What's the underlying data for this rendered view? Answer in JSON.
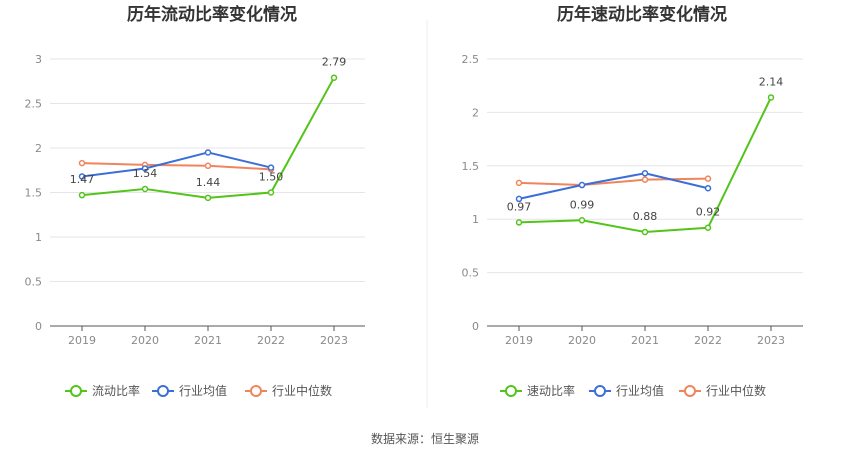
{
  "source_text": "数据来源：恒生聚源",
  "colors": {
    "ratio": "#52c41a",
    "industry_avg": "#3a6fd8",
    "industry_median": "#f0845c",
    "grid": "#e6e6ea",
    "axis": "#555555"
  },
  "chart_data": [
    {
      "type": "line",
      "title": "历年流动比率变化情况",
      "xlabel": "",
      "ylabel": "",
      "categories": [
        "2019",
        "2020",
        "2021",
        "2022",
        "2023"
      ],
      "ylim": [
        0,
        3
      ],
      "yticks": [
        "0",
        "0.5",
        "1",
        "1.5",
        "2",
        "2.5",
        "3"
      ],
      "series": [
        {
          "name": "流动比率",
          "values": [
            1.47,
            1.54,
            1.44,
            1.5,
            2.79
          ],
          "labels": [
            "1.47",
            "1.54",
            "1.44",
            "1.50",
            "2.79"
          ],
          "color_key": "ratio"
        },
        {
          "name": "行业均值",
          "values": [
            1.68,
            1.77,
            1.95,
            1.78,
            null
          ],
          "color_key": "industry_avg"
        },
        {
          "name": "行业中位数",
          "values": [
            1.83,
            1.81,
            1.8,
            1.76,
            null
          ],
          "color_key": "industry_median"
        }
      ],
      "grid": true,
      "legend_position": "bottom"
    },
    {
      "type": "line",
      "title": "历年速动比率变化情况",
      "xlabel": "",
      "ylabel": "",
      "categories": [
        "2019",
        "2020",
        "2021",
        "2022",
        "2023"
      ],
      "ylim": [
        0,
        2.5
      ],
      "yticks": [
        "0",
        "0.5",
        "1",
        "1.5",
        "2",
        "2.5"
      ],
      "series": [
        {
          "name": "速动比率",
          "values": [
            0.97,
            0.99,
            0.88,
            0.92,
            2.14
          ],
          "labels": [
            "0.97",
            "0.99",
            "0.88",
            "0.92",
            "2.14"
          ],
          "color_key": "ratio"
        },
        {
          "name": "行业均值",
          "values": [
            1.19,
            1.32,
            1.43,
            1.29,
            null
          ],
          "color_key": "industry_avg"
        },
        {
          "name": "行业中位数",
          "values": [
            1.34,
            1.32,
            1.37,
            1.38,
            null
          ],
          "color_key": "industry_median"
        }
      ],
      "grid": true,
      "legend_position": "bottom"
    }
  ]
}
